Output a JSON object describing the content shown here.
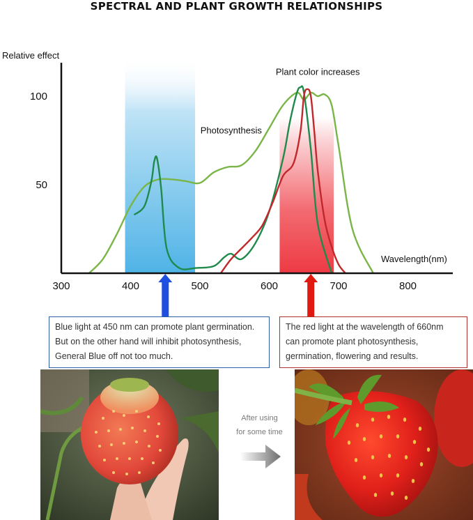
{
  "title": "SPECTRAL AND PLANT GROWTH RELATIONSHIPS",
  "chart_data": {
    "type": "line",
    "ylabel": "Relative effect",
    "xlabel": "Wavelength(nm)",
    "x_ticks": [
      "300",
      "400",
      "500",
      "600",
      "700",
      "800"
    ],
    "y_ticks": [
      "50",
      "100"
    ],
    "xlim": [
      300,
      850
    ],
    "ylim": [
      0,
      115
    ],
    "bands": [
      {
        "range": [
          392,
          493
        ],
        "color": "#4fb3e6"
      },
      {
        "range": [
          615,
          693
        ],
        "color": "#f0404a"
      }
    ],
    "annotations": [
      {
        "text": "Photosynthesis",
        "x": 545,
        "y": 79
      },
      {
        "text": "Plant color increases",
        "x": 670,
        "y": 112
      }
    ],
    "series": [
      {
        "color": "#7ab547",
        "x": [
          340,
          360,
          380,
          400,
          420,
          440,
          460,
          480,
          500,
          520,
          540,
          560,
          580,
          600,
          620,
          640,
          650,
          660,
          670,
          680,
          690,
          700,
          720,
          750
        ],
        "y": [
          0,
          8,
          22,
          38,
          49,
          53,
          53,
          52,
          51,
          57,
          60,
          61,
          69,
          82,
          95,
          102,
          98,
          102,
          100,
          101,
          95,
          72,
          25,
          0
        ]
      },
      {
        "color": "#1f8a4c",
        "x": [
          405,
          420,
          430,
          434,
          438,
          444,
          452,
          470,
          495,
          520,
          535,
          545,
          560,
          580,
          600,
          620,
          630,
          640,
          645,
          650,
          660,
          670,
          690
        ],
        "y": [
          33,
          38,
          52,
          63,
          65,
          48,
          14,
          3,
          3,
          4,
          9,
          11,
          8,
          17,
          35,
          65,
          86,
          102,
          105,
          102,
          70,
          28,
          0
        ]
      },
      {
        "color": "#c0282c",
        "x": [
          530,
          545,
          560,
          575,
          590,
          605,
          620,
          635,
          645,
          650,
          655,
          660,
          665,
          670,
          680,
          690,
          700,
          710
        ],
        "y": [
          0,
          8,
          14,
          20,
          27,
          40,
          55,
          62,
          80,
          100,
          104,
          100,
          80,
          58,
          30,
          15,
          5,
          0
        ]
      }
    ]
  },
  "boxes": {
    "blue": {
      "line1": "Blue light at 450 nm can promote plant germination.",
      "line2": "But on the other hand will inhibit photosynthesis,",
      "line3": "General Blue off not too much."
    },
    "red": {
      "line1": "The red light at the wavelength of 660nm",
      "line2": "can promote plant photosynthesis,",
      "line3": "germination, flowering and results."
    }
  },
  "middle": {
    "line1": "After using",
    "line2": "for some time"
  },
  "colors": {
    "blue_arrow": "#1f4fe0",
    "red_arrow": "#e01a10",
    "axis": "#111111"
  },
  "icons": {
    "photo_before": "unripe-strawberry-image",
    "photo_after": "ripe-strawberry-image",
    "transition": "right-arrow-icon"
  }
}
